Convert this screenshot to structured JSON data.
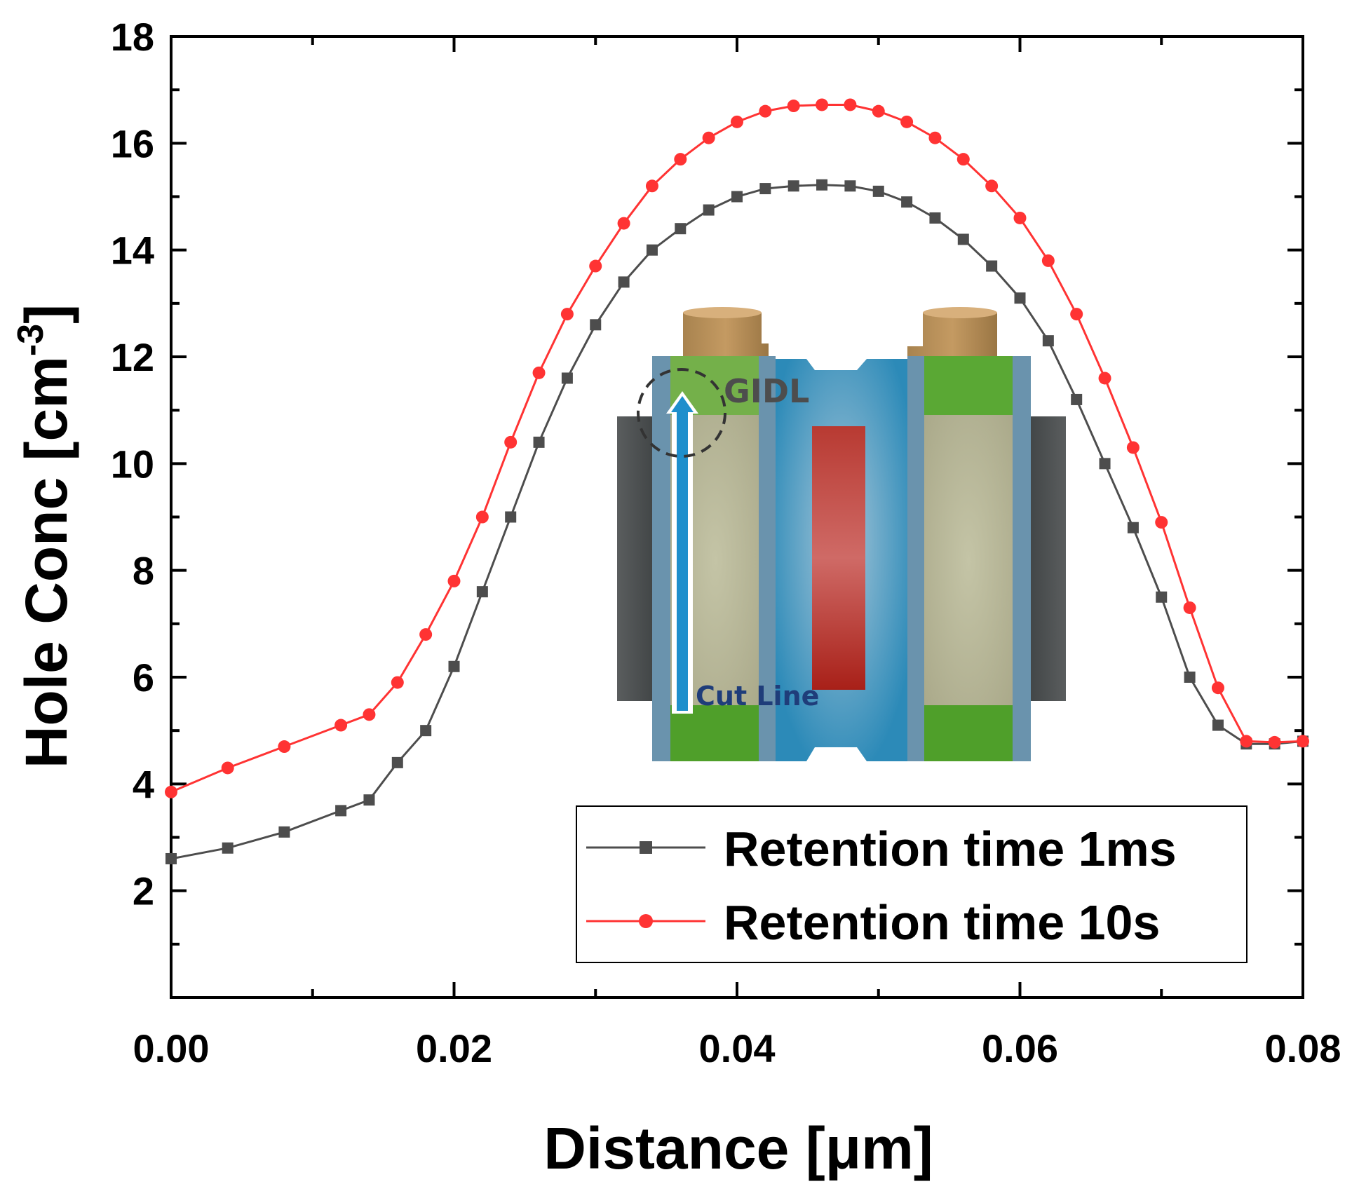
{
  "chart_data": {
    "type": "line",
    "xlabel": "Distance [μm]",
    "ylabel_main": "Hole Conc [cm",
    "ylabel_sup": "-3",
    "ylabel_close": "]",
    "xlim": [
      0,
      0.08
    ],
    "ylim": [
      0,
      18
    ],
    "xticks": [
      "0.00",
      "0.02",
      "0.04",
      "0.06",
      "0.08"
    ],
    "xtick_values": [
      0,
      0.02,
      0.04,
      0.06,
      0.08
    ],
    "yticks": [
      "2",
      "4",
      "6",
      "8",
      "10",
      "12",
      "14",
      "16",
      "18"
    ],
    "ytick_values": [
      2,
      4,
      6,
      8,
      10,
      12,
      14,
      16,
      18
    ],
    "grid": false,
    "legend_position": "bottom-right",
    "series": [
      {
        "name": "Retention time 1ms",
        "color": "#4d4d4d",
        "marker": "square",
        "x": [
          0,
          0.004,
          0.008,
          0.012,
          0.014,
          0.016,
          0.018,
          0.02,
          0.022,
          0.024,
          0.026,
          0.028,
          0.03,
          0.032,
          0.034,
          0.036,
          0.038,
          0.04,
          0.042,
          0.044,
          0.046,
          0.048,
          0.05,
          0.052,
          0.054,
          0.056,
          0.058,
          0.06,
          0.062,
          0.064,
          0.066,
          0.068,
          0.07,
          0.072,
          0.074,
          0.076,
          0.078,
          0.08
        ],
        "y": [
          2.6,
          2.8,
          3.1,
          3.5,
          3.7,
          4.4,
          5.0,
          6.2,
          7.6,
          9.0,
          10.4,
          11.6,
          12.6,
          13.4,
          14.0,
          14.4,
          14.75,
          15.0,
          15.15,
          15.2,
          15.22,
          15.2,
          15.1,
          14.9,
          14.6,
          14.2,
          13.7,
          13.1,
          12.3,
          11.2,
          10.0,
          8.8,
          7.5,
          6.0,
          5.1,
          4.75,
          4.75,
          4.8
        ]
      },
      {
        "name": "Retention time 10s",
        "color": "#ff3333",
        "marker": "circle",
        "x": [
          0,
          0.004,
          0.008,
          0.012,
          0.014,
          0.016,
          0.018,
          0.02,
          0.022,
          0.024,
          0.026,
          0.028,
          0.03,
          0.032,
          0.034,
          0.036,
          0.038,
          0.04,
          0.042,
          0.044,
          0.046,
          0.048,
          0.05,
          0.052,
          0.054,
          0.056,
          0.058,
          0.06,
          0.062,
          0.064,
          0.066,
          0.068,
          0.07,
          0.072,
          0.074,
          0.076,
          0.078,
          0.08
        ],
        "y": [
          3.85,
          4.3,
          4.7,
          5.1,
          5.3,
          5.9,
          6.8,
          7.8,
          9.0,
          10.4,
          11.7,
          12.8,
          13.7,
          14.5,
          15.2,
          15.7,
          16.1,
          16.4,
          16.6,
          16.7,
          16.72,
          16.72,
          16.6,
          16.4,
          16.1,
          15.7,
          15.2,
          14.6,
          13.8,
          12.8,
          11.6,
          10.3,
          8.9,
          7.3,
          5.8,
          4.8,
          4.78,
          4.8
        ]
      }
    ],
    "inset": {
      "gidl_label": "GIDL",
      "cut_line_label": "Cut Line"
    }
  }
}
